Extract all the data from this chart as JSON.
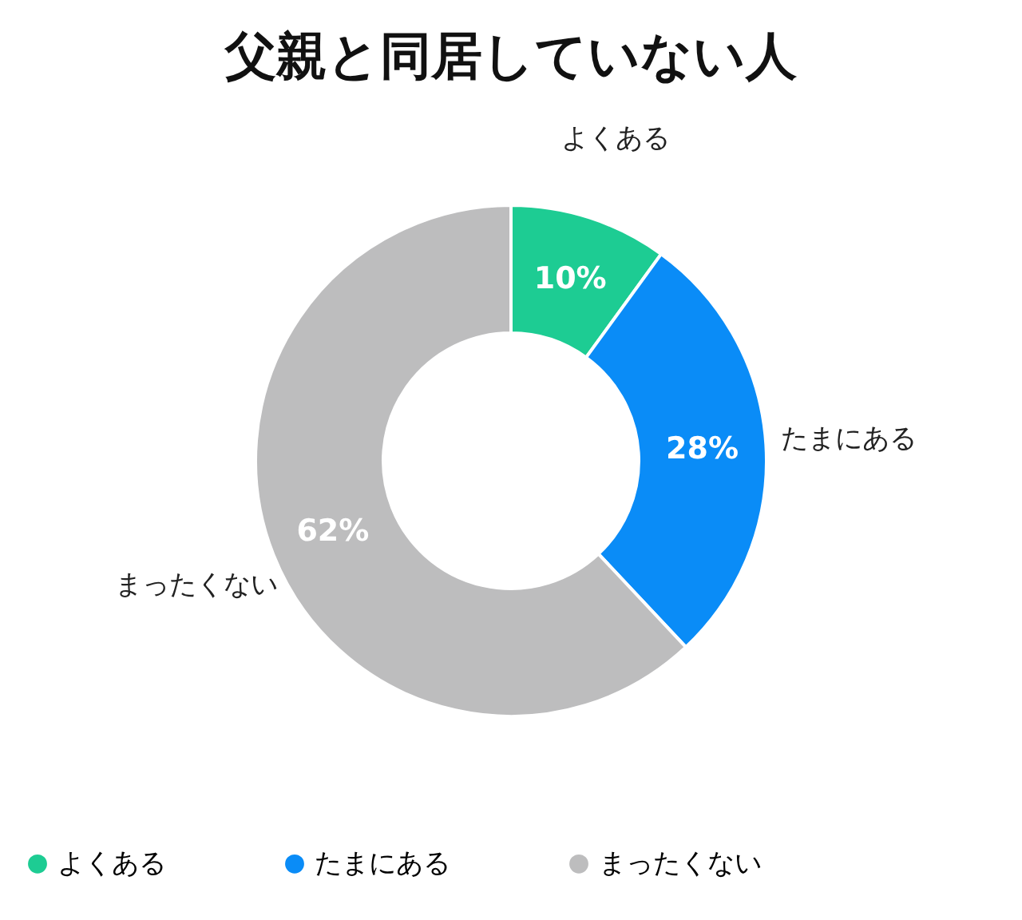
{
  "chart_data": {
    "type": "donut",
    "title": "父親と同居していない人",
    "categories": [
      "よくある",
      "たまにある",
      "まったくない"
    ],
    "values": [
      10,
      28,
      62
    ],
    "value_labels": [
      "10%",
      "28%",
      "62%"
    ],
    "colors": [
      "#1dcc93",
      "#0a8cf7",
      "#bdbdbe"
    ],
    "legend": "bottom"
  }
}
